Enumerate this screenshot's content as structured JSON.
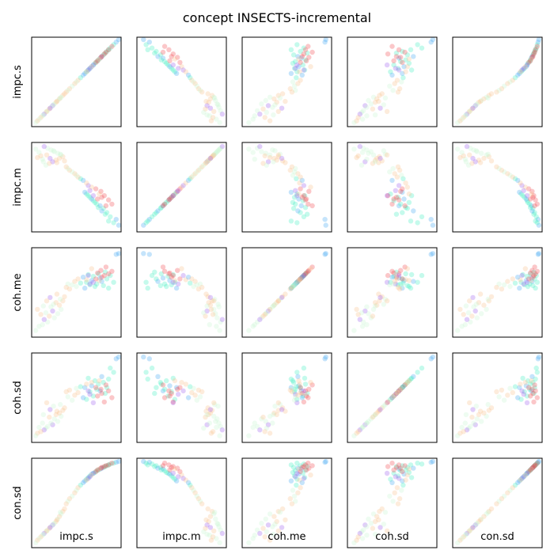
{
  "chart_data": {
    "type": "scatter",
    "kind": "scatter-matrix",
    "title": "concept INSECTS-incremental",
    "variables": [
      "impc.s",
      "impc.m",
      "coh.me",
      "coh.sd",
      "con.sd"
    ],
    "x_labels": [
      "impc.s",
      "impc.m",
      "coh.me",
      "coh.sd",
      "con.sd"
    ],
    "y_labels": [
      "impc.s",
      "impc.m",
      "coh.me",
      "coh.sd",
      "con.sd"
    ],
    "ticks": "none",
    "grid": false,
    "point_alpha": 0.3,
    "palette": [
      "#9a5cf0",
      "#3fa6f3",
      "#3ef0c0",
      "#c7f5d2",
      "#f9c08a",
      "#f1444c"
    ],
    "color_variable": "time (row order)",
    "points": [
      {
        "x": [
          1.0,
          0.05,
          0.96,
          0.98,
          0.99
        ],
        "c": "#3fa6f3"
      },
      {
        "x": [
          0.97,
          0.12,
          0.95,
          0.96,
          0.98
        ],
        "c": "#3fa6f3"
      },
      {
        "x": [
          0.94,
          0.08,
          0.62,
          0.8,
          0.97
        ],
        "c": "#3ef0c0"
      },
      {
        "x": [
          0.9,
          0.15,
          0.7,
          0.85,
          0.96
        ],
        "c": "#3ef0c0"
      },
      {
        "x": [
          0.88,
          0.1,
          0.55,
          0.72,
          0.95
        ],
        "c": "#3ef0c0"
      },
      {
        "x": [
          0.86,
          0.2,
          0.66,
          0.62,
          0.94
        ],
        "c": "#3ef0c0"
      },
      {
        "x": [
          0.84,
          0.18,
          0.74,
          0.55,
          0.93
        ],
        "c": "#3ef0c0"
      },
      {
        "x": [
          0.82,
          0.25,
          0.58,
          0.68,
          0.92
        ],
        "c": "#3ef0c0"
      },
      {
        "x": [
          0.8,
          0.22,
          0.63,
          0.75,
          0.91
        ],
        "c": "#3fa6f3"
      },
      {
        "x": [
          0.78,
          0.28,
          0.67,
          0.58,
          0.9
        ],
        "c": "#3fa6f3"
      },
      {
        "x": [
          0.76,
          0.26,
          0.72,
          0.66,
          0.89
        ],
        "c": "#3ef0c0"
      },
      {
        "x": [
          0.74,
          0.3,
          0.6,
          0.6,
          0.88
        ],
        "c": "#3ef0c0"
      },
      {
        "x": [
          0.72,
          0.32,
          0.57,
          0.7,
          0.86
        ],
        "c": "#3ef0c0"
      },
      {
        "x": [
          0.7,
          0.34,
          0.69,
          0.52,
          0.85
        ],
        "c": "#3ef0c0"
      },
      {
        "x": [
          0.68,
          0.36,
          0.64,
          0.64,
          0.84
        ],
        "c": "#3fa6f3"
      },
      {
        "x": [
          0.66,
          0.38,
          0.59,
          0.57,
          0.82
        ],
        "c": "#3ef0c0"
      },
      {
        "x": [
          0.64,
          0.4,
          0.71,
          0.73,
          0.8
        ],
        "c": "#3ef0c0"
      },
      {
        "x": [
          0.62,
          0.42,
          0.62,
          0.48,
          0.78
        ],
        "c": "#3ef0c0"
      },
      {
        "x": [
          0.6,
          0.44,
          0.55,
          0.62,
          0.76
        ],
        "c": "#3fa6f3"
      },
      {
        "x": [
          0.92,
          0.3,
          0.75,
          0.5,
          0.97
        ],
        "c": "#f1444c"
      },
      {
        "x": [
          0.88,
          0.35,
          0.72,
          0.58,
          0.95
        ],
        "c": "#f1444c"
      },
      {
        "x": [
          0.85,
          0.28,
          0.8,
          0.65,
          0.94
        ],
        "c": "#f1444c"
      },
      {
        "x": [
          0.83,
          0.4,
          0.7,
          0.45,
          0.93
        ],
        "c": "#f1444c"
      },
      {
        "x": [
          0.8,
          0.38,
          0.68,
          0.55,
          0.92
        ],
        "c": "#f1444c"
      },
      {
        "x": [
          0.79,
          0.45,
          0.76,
          0.6,
          0.91
        ],
        "c": "#f1444c"
      },
      {
        "x": [
          0.77,
          0.42,
          0.64,
          0.7,
          0.9
        ],
        "c": "#f9c08a"
      },
      {
        "x": [
          0.75,
          0.36,
          0.73,
          0.52,
          0.89
        ],
        "c": "#f1444c"
      },
      {
        "x": [
          0.73,
          0.48,
          0.66,
          0.62,
          0.87
        ],
        "c": "#f1444c"
      },
      {
        "x": [
          0.7,
          0.4,
          0.62,
          0.44,
          0.85
        ],
        "c": "#9a5cf0"
      },
      {
        "x": [
          0.68,
          0.5,
          0.78,
          0.68,
          0.83
        ],
        "c": "#f9c08a"
      },
      {
        "x": [
          0.66,
          0.46,
          0.6,
          0.54,
          0.81
        ],
        "c": "#9a5cf0"
      },
      {
        "x": [
          0.64,
          0.52,
          0.7,
          0.58,
          0.79
        ],
        "c": "#9a5cf0"
      },
      {
        "x": [
          0.62,
          0.55,
          0.65,
          0.66,
          0.77
        ],
        "c": "#f9c08a"
      },
      {
        "x": [
          0.58,
          0.58,
          0.68,
          0.5,
          0.74
        ],
        "c": "#3fa6f3"
      },
      {
        "x": [
          0.55,
          0.6,
          0.61,
          0.63,
          0.71
        ],
        "c": "#3ef0c0"
      },
      {
        "x": [
          0.52,
          0.62,
          0.66,
          0.56,
          0.68
        ],
        "c": "#f9c08a"
      },
      {
        "x": [
          0.5,
          0.64,
          0.57,
          0.61,
          0.65
        ],
        "c": "#c7f5d2"
      },
      {
        "x": [
          0.48,
          0.66,
          0.63,
          0.53,
          0.62
        ],
        "c": "#f9c08a"
      },
      {
        "x": [
          0.45,
          0.68,
          0.59,
          0.47,
          0.58
        ],
        "c": "#c7f5d2"
      },
      {
        "x": [
          0.42,
          0.7,
          0.54,
          0.59,
          0.55
        ],
        "c": "#f9c08a"
      },
      {
        "x": [
          0.4,
          0.72,
          0.6,
          0.51,
          0.52
        ],
        "c": "#c7f5d2"
      },
      {
        "x": [
          0.38,
          0.74,
          0.56,
          0.57,
          0.49
        ],
        "c": "#f9c08a"
      },
      {
        "x": [
          0.34,
          0.86,
          0.4,
          0.35,
          0.4
        ],
        "c": "#f9c08a"
      },
      {
        "x": [
          0.32,
          0.88,
          0.3,
          0.28,
          0.37
        ],
        "c": "#c7f5d2"
      },
      {
        "x": [
          0.3,
          0.84,
          0.35,
          0.32,
          0.34
        ],
        "c": "#f9c08a"
      },
      {
        "x": [
          0.28,
          0.9,
          0.25,
          0.22,
          0.31
        ],
        "c": "#c7f5d2"
      },
      {
        "x": [
          0.26,
          0.82,
          0.38,
          0.3,
          0.28
        ],
        "c": "#f9c08a"
      },
      {
        "x": [
          0.24,
          0.92,
          0.2,
          0.25,
          0.26
        ],
        "c": "#c7f5d2"
      },
      {
        "x": [
          0.22,
          0.8,
          0.28,
          0.18,
          0.24
        ],
        "c": "#9a5cf0"
      },
      {
        "x": [
          0.2,
          0.94,
          0.33,
          0.2,
          0.22
        ],
        "c": "#c7f5d2"
      },
      {
        "x": [
          0.18,
          0.78,
          0.22,
          0.27,
          0.2
        ],
        "c": "#f9c08a"
      },
      {
        "x": [
          0.16,
          0.96,
          0.15,
          0.16,
          0.18
        ],
        "c": "#c7f5d2"
      },
      {
        "x": [
          0.14,
          0.76,
          0.26,
          0.14,
          0.16
        ],
        "c": "#c7f5d2"
      },
      {
        "x": [
          0.12,
          0.98,
          0.18,
          0.12,
          0.14
        ],
        "c": "#9a5cf0"
      },
      {
        "x": [
          0.1,
          0.83,
          0.12,
          0.2,
          0.12
        ],
        "c": "#c7f5d2"
      },
      {
        "x": [
          0.08,
          0.87,
          0.24,
          0.1,
          0.1
        ],
        "c": "#f9c08a"
      },
      {
        "x": [
          0.06,
          0.91,
          0.1,
          0.15,
          0.08
        ],
        "c": "#c7f5d2"
      },
      {
        "x": [
          0.04,
          0.85,
          0.3,
          0.08,
          0.06
        ],
        "c": "#f9c08a"
      },
      {
        "x": [
          0.02,
          0.95,
          0.05,
          0.05,
          0.03
        ],
        "c": "#c7f5d2"
      },
      {
        "x": [
          0.36,
          0.81,
          0.45,
          0.38,
          0.43
        ],
        "c": "#f9c08a"
      },
      {
        "x": [
          0.31,
          0.89,
          0.42,
          0.42,
          0.39
        ],
        "c": "#c7f5d2"
      },
      {
        "x": [
          0.27,
          0.79,
          0.48,
          0.34,
          0.3
        ],
        "c": "#f9c08a"
      },
      {
        "x": [
          0.23,
          0.93,
          0.36,
          0.4,
          0.25
        ],
        "c": "#c7f5d2"
      },
      {
        "x": [
          0.19,
          0.84,
          0.44,
          0.36,
          0.21
        ],
        "c": "#9a5cf0"
      },
      {
        "x": [
          0.15,
          0.88,
          0.4,
          0.44,
          0.17
        ],
        "c": "#f9c08a"
      },
      {
        "x": [
          0.11,
          0.8,
          0.34,
          0.3,
          0.13
        ],
        "c": "#c7f5d2"
      }
    ]
  }
}
